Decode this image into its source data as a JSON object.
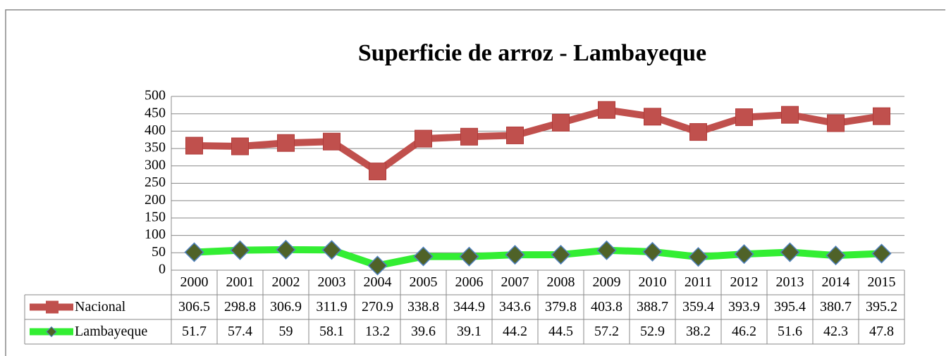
{
  "chart_data": {
    "type": "line",
    "stacked": true,
    "title": "Superficie de arroz - Lambayeque",
    "categories": [
      "2000",
      "2001",
      "2002",
      "2003",
      "2004",
      "2005",
      "2006",
      "2007",
      "2008",
      "2009",
      "2010",
      "2011",
      "2012",
      "2013",
      "2014",
      "2015"
    ],
    "series": [
      {
        "name": "Nacional",
        "color": "#c0504d",
        "marker": "square",
        "values": [
          306.5,
          298.8,
          306.9,
          311.9,
          270.9,
          338.8,
          344.9,
          343.6,
          379.8,
          403.8,
          388.7,
          359.4,
          393.9,
          395.4,
          380.7,
          395.2
        ]
      },
      {
        "name": "Lambayeque",
        "color": "#33ee33",
        "marker": "diamond",
        "values": [
          51.7,
          57.4,
          59,
          58.1,
          13.2,
          39.6,
          39.1,
          44.2,
          44.5,
          57.2,
          52.9,
          38.2,
          46.2,
          51.6,
          42.3,
          47.8
        ]
      }
    ],
    "ylim": [
      0,
      500
    ],
    "yticks": [
      0,
      50,
      100,
      150,
      200,
      250,
      300,
      350,
      400,
      450,
      500
    ],
    "grid": true,
    "data_table": true
  }
}
